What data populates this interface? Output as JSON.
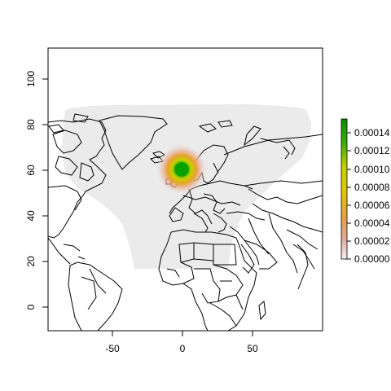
{
  "map": {
    "type": "heatmap",
    "x_ticks": [
      "-50",
      "0",
      "50"
    ],
    "y_ticks": [
      "0",
      "20",
      "40",
      "60",
      "80",
      "100"
    ],
    "xlim": [
      -95,
      97
    ],
    "ylim": [
      -12,
      115
    ],
    "hotspot": {
      "lon": -1,
      "lat": 60,
      "value": 0.00015
    },
    "colorbar": {
      "ticks": [
        "0.00000",
        "0.00002",
        "0.00004",
        "0.00006",
        "0.00008",
        "0.00010",
        "0.00012",
        "0.00014"
      ],
      "range": [
        0,
        0.00015
      ],
      "colors": [
        "#f2f2f2",
        "#e0a090",
        "#e8b040",
        "#e0d000",
        "#a0c800",
        "#40b000",
        "#00a000"
      ]
    },
    "colors": {
      "domain": "#ebebeb",
      "land_stroke": "#000000",
      "frame": "#000000"
    }
  }
}
